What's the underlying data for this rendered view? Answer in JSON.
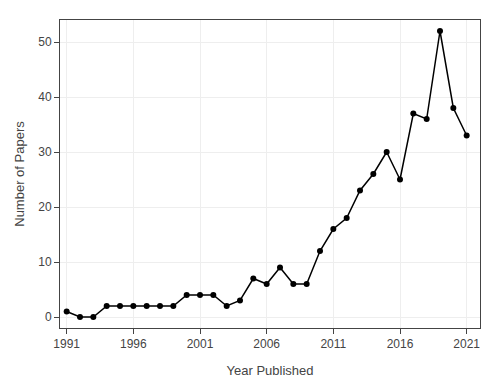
{
  "chart_data": {
    "type": "line",
    "x": [
      1991,
      1992,
      1993,
      1994,
      1995,
      1996,
      1997,
      1998,
      1999,
      2000,
      2001,
      2002,
      2003,
      2004,
      2005,
      2006,
      2007,
      2008,
      2009,
      2010,
      2011,
      2012,
      2013,
      2014,
      2015,
      2016,
      2017,
      2018,
      2019,
      2020,
      2021
    ],
    "values": [
      1,
      0,
      0,
      2,
      2,
      2,
      2,
      2,
      2,
      4,
      4,
      4,
      2,
      3,
      7,
      6,
      9,
      6,
      6,
      12,
      16,
      18,
      23,
      26,
      30,
      25,
      37,
      36,
      52,
      38,
      33
    ],
    "xlabel": "Year Published",
    "ylabel": "Number of Papers",
    "xlim": [
      1990.5,
      2022
    ],
    "ylim": [
      -2,
      54
    ],
    "xticks": [
      1991,
      1996,
      2001,
      2006,
      2011,
      2016,
      2021
    ],
    "yticks": [
      0,
      10,
      20,
      30,
      40,
      50
    ],
    "color": "#000000",
    "marker": "circle",
    "grid": true
  }
}
